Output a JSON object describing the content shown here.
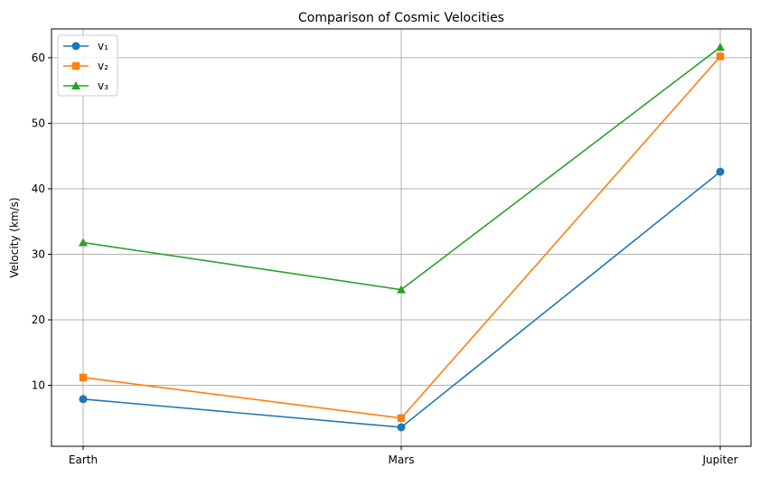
{
  "chart_data": {
    "type": "line",
    "title": "Comparison of Cosmic Velocities",
    "xlabel": "",
    "ylabel": "Velocity (km/s)",
    "categories": [
      "Earth",
      "Mars",
      "Jupiter"
    ],
    "ylim": [
      0.7,
      64.4
    ],
    "yticks": [
      10,
      20,
      30,
      40,
      50,
      60
    ],
    "grid": true,
    "legend_position": "upper-left",
    "series": [
      {
        "name": "v₁",
        "values": [
          7.9,
          3.6,
          42.6
        ],
        "color": "#1f77b4",
        "marker": "circle"
      },
      {
        "name": "v₂",
        "values": [
          11.2,
          5.0,
          60.2
        ],
        "color": "#ff7f0e",
        "marker": "square"
      },
      {
        "name": "v₃",
        "values": [
          31.8,
          24.6,
          61.6
        ],
        "color": "#2ca02c",
        "marker": "triangle"
      }
    ]
  }
}
